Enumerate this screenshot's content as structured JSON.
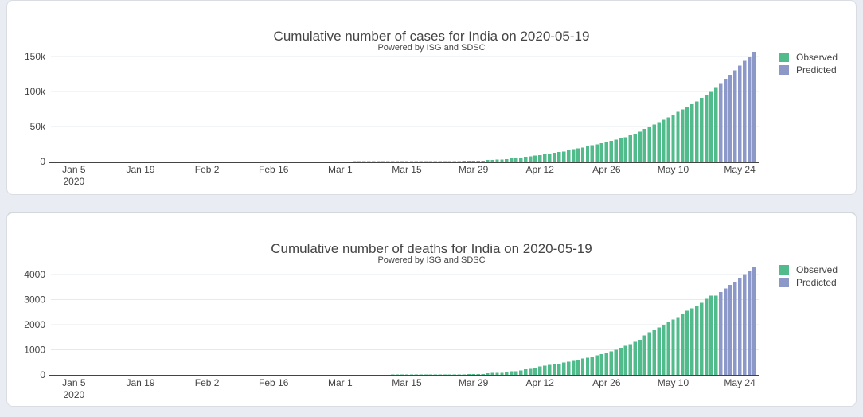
{
  "ui": {
    "page_background": "#e9edf3",
    "card_background": "#ffffff",
    "card_border": "#d9dde3",
    "gridline_color": "#e7e9ed",
    "axis_line_color": "#444444",
    "text_color": "#444444"
  },
  "chart_data": [
    {
      "type": "bar",
      "title": "Cumulative number of cases for India on 2020-05-19",
      "subtitle": "Powered by ISG and SDSC",
      "xlabel": "",
      "ylabel": "",
      "ylim": [
        0,
        158000
      ],
      "grid": true,
      "legend_position": "right",
      "x_range": [
        "2019-12-31",
        "2020-05-28"
      ],
      "yticks": [
        {
          "value": 0,
          "label": "0"
        },
        {
          "value": 50000,
          "label": "50k"
        },
        {
          "value": 100000,
          "label": "100k"
        },
        {
          "value": 150000,
          "label": "150k"
        }
      ],
      "xticks": [
        {
          "date": "2020-01-05",
          "label": "Jan 5",
          "sublabel": "2020"
        },
        {
          "date": "2020-01-19",
          "label": "Jan 19"
        },
        {
          "date": "2020-02-02",
          "label": "Feb 2"
        },
        {
          "date": "2020-02-16",
          "label": "Feb 16"
        },
        {
          "date": "2020-03-01",
          "label": "Mar 1"
        },
        {
          "date": "2020-03-15",
          "label": "Mar 15"
        },
        {
          "date": "2020-03-29",
          "label": "Mar 29"
        },
        {
          "date": "2020-04-12",
          "label": "Apr 12"
        },
        {
          "date": "2020-04-26",
          "label": "Apr 26"
        },
        {
          "date": "2020-05-10",
          "label": "May 10"
        },
        {
          "date": "2020-05-24",
          "label": "May 24"
        }
      ],
      "series": [
        {
          "name": "Observed",
          "color": "#52bb8b",
          "start_date": "2019-12-31",
          "cadence": "daily",
          "values": [
            0,
            0,
            0,
            0,
            0,
            0,
            0,
            0,
            0,
            0,
            0,
            0,
            0,
            0,
            0,
            0,
            0,
            0,
            0,
            0,
            0,
            0,
            0,
            0,
            0,
            0,
            0,
            0,
            0,
            0,
            1,
            1,
            1,
            2,
            3,
            3,
            3,
            3,
            3,
            3,
            3,
            3,
            3,
            3,
            3,
            3,
            3,
            3,
            3,
            3,
            3,
            3,
            3,
            3,
            3,
            3,
            3,
            3,
            3,
            3,
            3,
            3,
            5,
            5,
            28,
            30,
            31,
            34,
            39,
            43,
            56,
            62,
            73,
            82,
            102,
            113,
            119,
            142,
            156,
            194,
            244,
            330,
            396,
            499,
            536,
            657,
            727,
            887,
            987,
            1024,
            1251,
            1397,
            1998,
            2543,
            2567,
            3082,
            3588,
            4778,
            5311,
            5916,
            6725,
            7600,
            8446,
            9205,
            10453,
            11487,
            12322,
            13430,
            14352,
            15722,
            17615,
            18539,
            20080,
            21370,
            23077,
            24530,
            26283,
            27890,
            29451,
            31324,
            33062,
            34863,
            37257,
            39699,
            42505,
            46437,
            49400,
            52987,
            56351,
            59695,
            62808,
            67161,
            70768,
            74292,
            78055,
            81997,
            85784,
            90648,
            95698,
            100328,
            106475
          ]
        },
        {
          "name": "Predicted",
          "color": "#8b98c8",
          "start_date": "2020-05-20",
          "cadence": "daily",
          "values": [
            112100,
            118000,
            124100,
            130400,
            136900,
            143500,
            150200,
            157000
          ]
        }
      ]
    },
    {
      "type": "bar",
      "title": "Cumulative number of deaths for India on 2020-05-19",
      "subtitle": "Powered by ISG and SDSC",
      "xlabel": "",
      "ylabel": "",
      "ylim": [
        0,
        4400
      ],
      "grid": true,
      "legend_position": "right",
      "x_range": [
        "2019-12-31",
        "2020-05-28"
      ],
      "yticks": [
        {
          "value": 0,
          "label": "0"
        },
        {
          "value": 1000,
          "label": "1000"
        },
        {
          "value": 2000,
          "label": "2000"
        },
        {
          "value": 3000,
          "label": "3000"
        },
        {
          "value": 4000,
          "label": "4000"
        }
      ],
      "xticks": [
        {
          "date": "2020-01-05",
          "label": "Jan 5",
          "sublabel": "2020"
        },
        {
          "date": "2020-01-19",
          "label": "Jan 19"
        },
        {
          "date": "2020-02-02",
          "label": "Feb 2"
        },
        {
          "date": "2020-02-16",
          "label": "Feb 16"
        },
        {
          "date": "2020-03-01",
          "label": "Mar 1"
        },
        {
          "date": "2020-03-15",
          "label": "Mar 15"
        },
        {
          "date": "2020-03-29",
          "label": "Mar 29"
        },
        {
          "date": "2020-04-12",
          "label": "Apr 12"
        },
        {
          "date": "2020-04-26",
          "label": "Apr 26"
        },
        {
          "date": "2020-05-10",
          "label": "May 10"
        },
        {
          "date": "2020-05-24",
          "label": "May 24"
        }
      ],
      "series": [
        {
          "name": "Observed",
          "color": "#52bb8b",
          "start_date": "2019-12-31",
          "cadence": "daily",
          "values": [
            0,
            0,
            0,
            0,
            0,
            0,
            0,
            0,
            0,
            0,
            0,
            0,
            0,
            0,
            0,
            0,
            0,
            0,
            0,
            0,
            0,
            0,
            0,
            0,
            0,
            0,
            0,
            0,
            0,
            0,
            0,
            0,
            0,
            0,
            0,
            0,
            0,
            0,
            0,
            0,
            0,
            0,
            0,
            0,
            0,
            0,
            0,
            0,
            0,
            0,
            0,
            0,
            0,
            0,
            0,
            0,
            0,
            0,
            0,
            0,
            0,
            0,
            0,
            0,
            0,
            0,
            0,
            0,
            0,
            0,
            0,
            0,
            1,
            2,
            2,
            2,
            2,
            3,
            3,
            4,
            5,
            5,
            7,
            10,
            10,
            12,
            20,
            20,
            24,
            27,
            32,
            35,
            58,
            72,
            72,
            86,
            99,
            136,
            150,
            178,
            226,
            246,
            288,
            331,
            358,
            393,
            405,
            448,
            486,
            521,
            559,
            592,
            645,
            681,
            721,
            780,
            825,
            872,
            939,
            1008,
            1079,
            1154,
            1223,
            1323,
            1391,
            1566,
            1693,
            1785,
            1889,
            1985,
            2101,
            2212,
            2294,
            2415,
            2551,
            2649,
            2753,
            2871,
            3025,
            3156,
            3163
          ]
        },
        {
          "name": "Predicted",
          "color": "#8b98c8",
          "start_date": "2020-05-20",
          "cadence": "daily",
          "values": [
            3300,
            3440,
            3580,
            3720,
            3870,
            4010,
            4150,
            4300
          ]
        }
      ]
    }
  ]
}
